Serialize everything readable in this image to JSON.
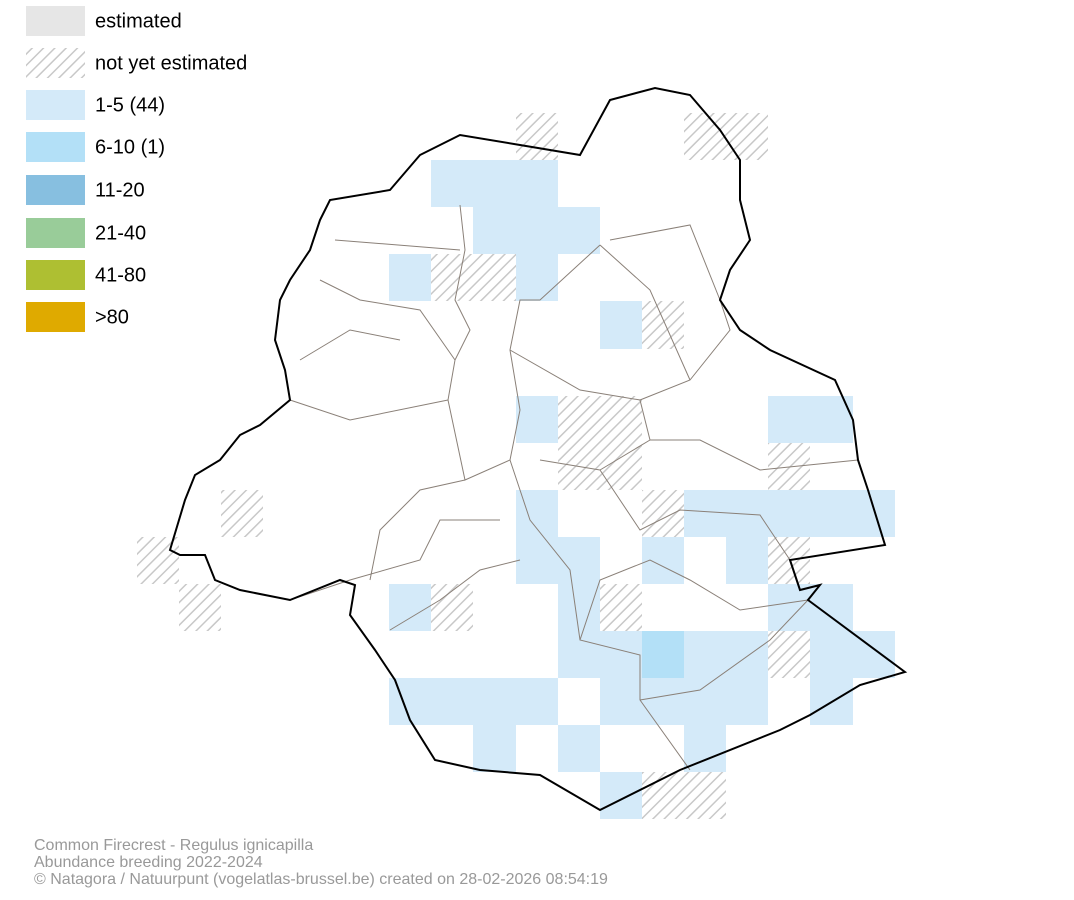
{
  "legend": [
    {
      "label": "estimated",
      "color": "#e6e6e6"
    },
    {
      "label": "not yet estimated"
    },
    {
      "label": "1-5 (44)",
      "color": "#d4eaf9"
    },
    {
      "label": "6-10 (1)",
      "color": "#b3e0f7"
    },
    {
      "label": "11-20",
      "color": "#87bfe0"
    },
    {
      "label": "21-40",
      "color": "#99cc99"
    },
    {
      "label": "41-80",
      "color": "#aebf32"
    },
    {
      "label": ">80",
      "color": "#dfaa00"
    }
  ],
  "footer": {
    "lines": [
      "Common Firecrest - Regulus ignicapilla",
      "Abundance breeding 2022-2024",
      "© Natagora / Natuurpunt (vogelatlas-brussel.be) created on 28-02-2026 08:54:19"
    ]
  }
}
